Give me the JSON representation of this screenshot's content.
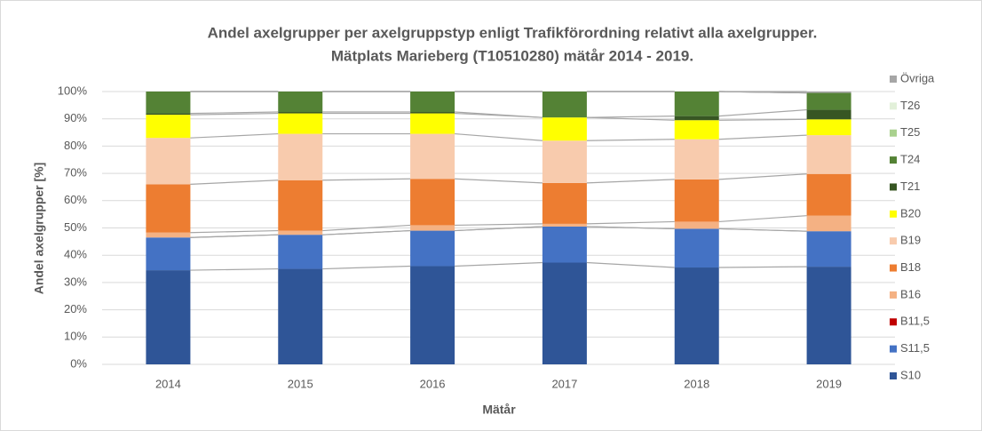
{
  "chart_data": {
    "type": "stacked_bar",
    "title": [
      "Andel axelgrupper per axelgruppstyp enligt Trafikförordning relativt alla axelgrupper.",
      "Mätplats Marieberg (T10510280) mätår 2014 - 2019."
    ],
    "x_label": "Mätår",
    "y_label": "Andel axelgrupper [%]",
    "categories": [
      "2014",
      "2015",
      "2016",
      "2017",
      "2018",
      "2019"
    ],
    "series": [
      {
        "name": "S10",
        "color": "#2f5597",
        "values": [
          34.5,
          35,
          36,
          37.3,
          35.5,
          35.8
        ]
      },
      {
        "name": "S11,5",
        "color": "#4472c4",
        "values": [
          12,
          12.5,
          13,
          13.2,
          14.2,
          13
        ]
      },
      {
        "name": "B11,5",
        "color": "#c00000",
        "values": [
          0,
          0,
          0,
          0,
          0,
          0
        ]
      },
      {
        "name": "B16",
        "color": "#f4b183",
        "values": [
          1.8,
          1.5,
          2,
          1,
          2.6,
          5.7
        ]
      },
      {
        "name": "B18",
        "color": "#ed7d31",
        "values": [
          17.7,
          18.5,
          17,
          15,
          15.5,
          15.3
        ]
      },
      {
        "name": "B19",
        "color": "#f8cbad",
        "values": [
          17,
          17,
          16.5,
          15.5,
          14.7,
          14.2
        ]
      },
      {
        "name": "B20",
        "color": "#ffff00",
        "values": [
          8.5,
          7.5,
          7.5,
          8.5,
          7,
          5.8
        ]
      },
      {
        "name": "T21",
        "color": "#375623",
        "values": [
          0.5,
          0.5,
          0.5,
          0,
          1.5,
          3.5
        ]
      },
      {
        "name": "T24",
        "color": "#548235",
        "values": [
          8,
          7.5,
          7.5,
          9.5,
          9,
          6.2
        ]
      },
      {
        "name": "T25",
        "color": "#a9d18e",
        "values": [
          0,
          0,
          0,
          0,
          0,
          0
        ]
      },
      {
        "name": "T26",
        "color": "#e2f0d9",
        "values": [
          0,
          0,
          0,
          0,
          0,
          0
        ]
      },
      {
        "name": "Övriga",
        "color": "#a6a6a6",
        "values": [
          0,
          0,
          0,
          0,
          0,
          0.5
        ]
      }
    ],
    "ylim": [
      0,
      100
    ],
    "yticks": [
      {
        "value": 0,
        "label": "0%"
      },
      {
        "value": 10,
        "label": "10%"
      },
      {
        "value": 20,
        "label": "20%"
      },
      {
        "value": 30,
        "label": "30%"
      },
      {
        "value": 40,
        "label": "40%"
      },
      {
        "value": 50,
        "label": "50%"
      },
      {
        "value": 60,
        "label": "60%"
      },
      {
        "value": 70,
        "label": "70%"
      },
      {
        "value": 80,
        "label": "80%"
      },
      {
        "value": 90,
        "label": "90%"
      },
      {
        "value": 100,
        "label": "100%"
      }
    ],
    "grid": true,
    "legend": "right"
  }
}
